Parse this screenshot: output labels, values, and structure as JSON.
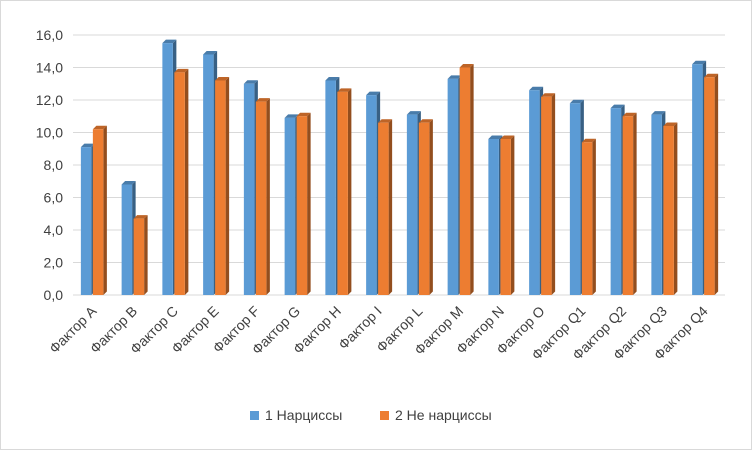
{
  "chart_data": {
    "type": "bar",
    "title": "",
    "xlabel": "",
    "ylabel": "",
    "ylim": [
      0,
      16
    ],
    "y_ticks": [
      "0,0",
      "2,0",
      "4,0",
      "6,0",
      "8,0",
      "10,0",
      "12,0",
      "14,0",
      "16,0"
    ],
    "grid": true,
    "legend_position": "bottom",
    "categories": [
      "Фактор A",
      "Фактор B",
      "Фактор C",
      "Фактор E",
      "Фактор F",
      "Фактор G",
      "Фактор H",
      "Фактор I",
      "Фактор L",
      "Фактор M",
      "Фактор N",
      "Фактор O",
      "Фактор Q1",
      "Фактор Q2",
      "Фактор Q3",
      "Фактор Q4"
    ],
    "series": [
      {
        "name": "1 Нарциссы",
        "color": "#5b9bd5",
        "values": [
          9.1,
          6.8,
          15.5,
          14.8,
          13.0,
          10.9,
          13.2,
          12.3,
          11.1,
          13.3,
          9.6,
          12.6,
          11.8,
          11.5,
          11.1,
          14.2
        ]
      },
      {
        "name": "2 Не нарциссы",
        "color": "#ed7d31",
        "values": [
          10.2,
          4.7,
          13.7,
          13.2,
          11.9,
          11.0,
          12.5,
          10.6,
          10.6,
          14.0,
          9.6,
          12.2,
          9.4,
          11.0,
          10.4,
          13.4
        ]
      }
    ]
  }
}
